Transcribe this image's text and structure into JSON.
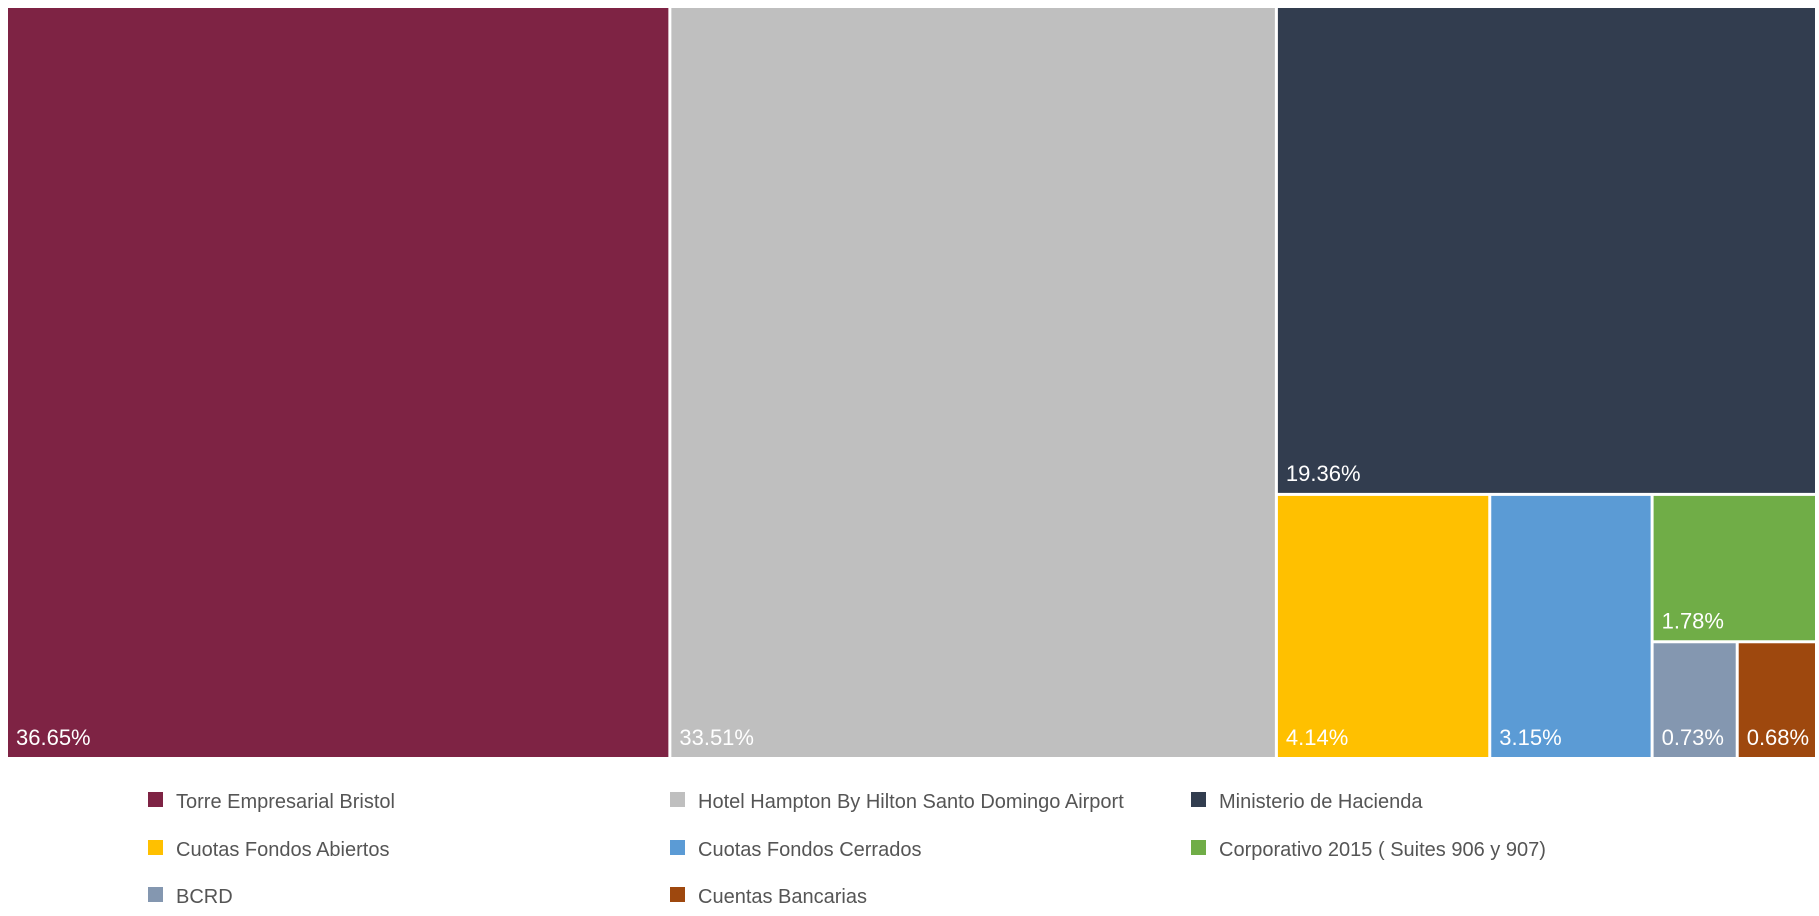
{
  "chart_data": {
    "type": "treemap",
    "title": "",
    "legend_position": "bottom",
    "series": [
      {
        "name": "Torre Empresarial Bristol",
        "value": 36.65,
        "label": "36.65%",
        "color": "#7E2344"
      },
      {
        "name": "Hotel Hampton By Hilton Santo Domingo Airport",
        "value": 33.51,
        "label": "33.51%",
        "color": "#BFBFBF"
      },
      {
        "name": "Ministerio de Hacienda",
        "value": 19.36,
        "label": "19.36%",
        "color": "#323D4F"
      },
      {
        "name": "Cuotas Fondos Abiertos",
        "value": 4.14,
        "label": "4.14%",
        "color": "#FFC000"
      },
      {
        "name": "Cuotas Fondos Cerrados",
        "value": 3.15,
        "label": "3.15%",
        "color": "#5B9BD5"
      },
      {
        "name": "Corporativo 2015 ( Suites 906 y 907)",
        "value": 1.78,
        "label": "1.78%",
        "color": "#70AD47"
      },
      {
        "name": "BCRD",
        "value": 0.73,
        "label": "0.73%",
        "color": "#8497B0"
      },
      {
        "name": "Cuentas Bancarias",
        "value": 0.68,
        "label": "0.68%",
        "color": "#9E480E"
      }
    ]
  }
}
